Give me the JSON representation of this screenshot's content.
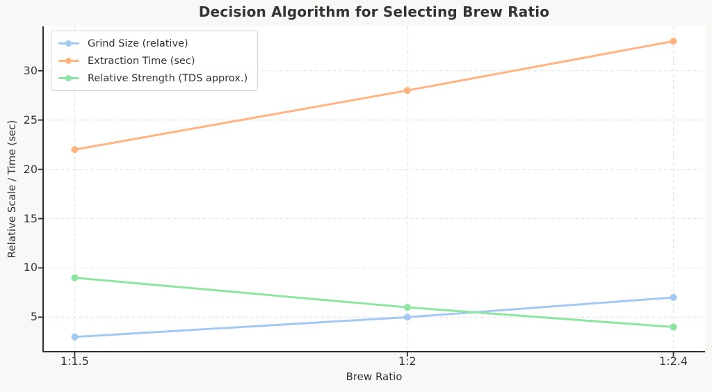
{
  "figure": {
    "background": "#f8f8f7",
    "plot_background": "#ffffff",
    "grid_color": "#e5e5e5",
    "spine_color": "#2e2e2e",
    "text_color": "#333333"
  },
  "chart_data": {
    "type": "line",
    "title": "Decision Algorithm for Selecting Brew Ratio",
    "xlabel": "Brew Ratio",
    "ylabel": "Relative Scale / Time (sec)",
    "x": [
      1.5,
      2.0,
      2.4
    ],
    "x_tick_labels": [
      "1:1.5",
      "1:2",
      "1:2.4"
    ],
    "y_ticks": [
      5,
      10,
      15,
      20,
      25,
      30
    ],
    "xlim": [
      1.4525,
      2.4475
    ],
    "ylim": [
      1.5,
      34.5
    ],
    "grid": true,
    "grid_style": "dashed",
    "legend_position": "upper left",
    "series": [
      {
        "name": "Grind Size (relative)",
        "values": [
          3,
          5,
          7
        ],
        "color": "#a1c9f4"
      },
      {
        "name": "Extraction Time (sec)",
        "values": [
          22,
          28,
          33
        ],
        "color": "#ffb482"
      },
      {
        "name": "Relative Strength (TDS approx.)",
        "values": [
          9,
          6,
          4
        ],
        "color": "#8de5a1"
      }
    ]
  }
}
